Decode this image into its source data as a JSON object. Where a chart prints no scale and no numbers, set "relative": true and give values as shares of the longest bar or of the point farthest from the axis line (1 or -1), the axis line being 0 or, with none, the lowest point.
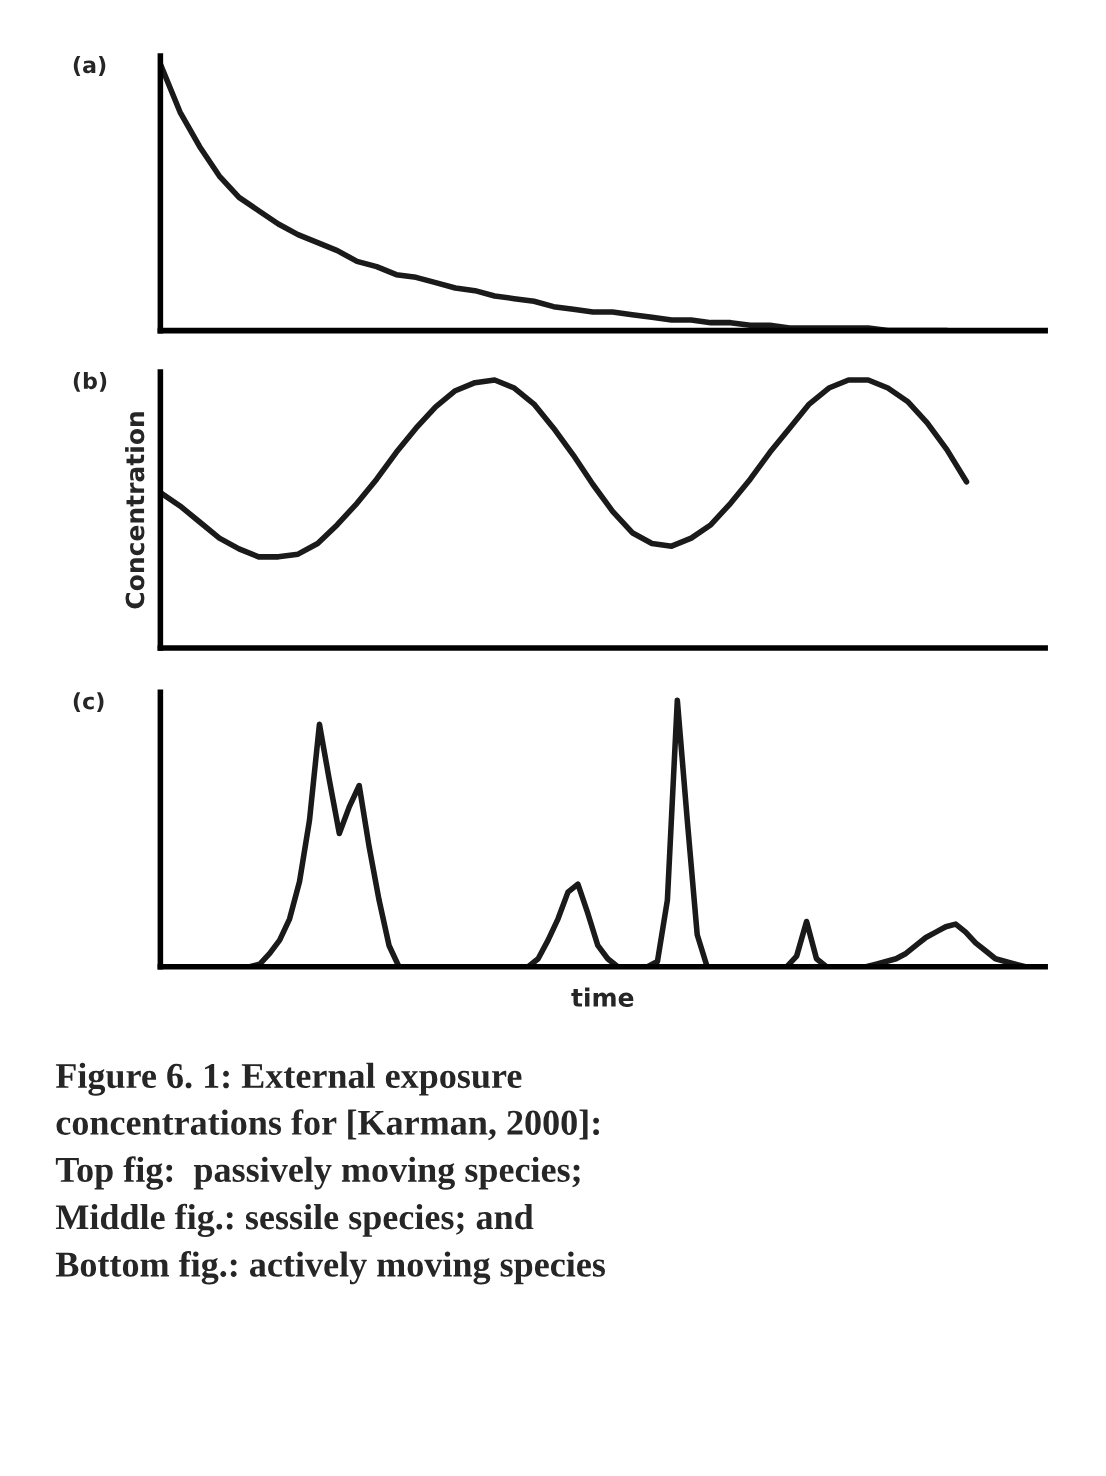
{
  "chart_data": [
    {
      "type": "line",
      "relative": true,
      "annotations": [
        "(a)"
      ],
      "categories": [
        null,
        null,
        null,
        null,
        null,
        null,
        null,
        null,
        null,
        null,
        null,
        null,
        null,
        null,
        null,
        null,
        null,
        null,
        null,
        null,
        null,
        null,
        null,
        null,
        null,
        null,
        null,
        null,
        null,
        null,
        null,
        null,
        null,
        null,
        null,
        null,
        null,
        null,
        null,
        null,
        null,
        null,
        null,
        null,
        null,
        null
      ],
      "series": [
        {
          "color": "#1a1a1a",
          "values": [
            1.0,
            0.82,
            0.69,
            0.58,
            0.5,
            0.45,
            0.4,
            0.36,
            0.33,
            0.3,
            0.26,
            0.24,
            0.21,
            0.2,
            0.18,
            0.16,
            0.15,
            0.13,
            0.12,
            0.11,
            0.09,
            0.08,
            0.07,
            0.07,
            0.06,
            0.05,
            0.04,
            0.04,
            0.03,
            0.03,
            0.02,
            0.02,
            0.01,
            0.01,
            0.01,
            0.01,
            0.01,
            0,
            0,
            0,
            0,
            null,
            null,
            null,
            null,
            null
          ]
        }
      ]
    },
    {
      "type": "line",
      "relative": true,
      "annotations": [
        "(b)"
      ],
      "ylabel": "Concentration",
      "categories": [
        null,
        null,
        null,
        null,
        null,
        null,
        null,
        null,
        null,
        null,
        null,
        null,
        null,
        null,
        null,
        null,
        null,
        null,
        null,
        null,
        null,
        null,
        null,
        null,
        null,
        null,
        null,
        null,
        null,
        null,
        null,
        null,
        null,
        null,
        null,
        null,
        null,
        null,
        null,
        null,
        null,
        null,
        null,
        null,
        null,
        null
      ],
      "series": [
        {
          "color": "#1a1a1a",
          "values": [
            0.58,
            0.53,
            0.47,
            0.41,
            0.37,
            0.34,
            0.34,
            0.35,
            0.39,
            0.46,
            0.54,
            0.63,
            0.73,
            0.82,
            0.9,
            0.96,
            0.99,
            1.0,
            0.97,
            0.91,
            0.82,
            0.72,
            0.61,
            0.51,
            0.43,
            0.39,
            0.38,
            0.41,
            0.46,
            0.54,
            0.63,
            0.73,
            0.82,
            0.91,
            0.97,
            1.0,
            1.0,
            0.97,
            0.92,
            0.84,
            0.74,
            0.62,
            null,
            null,
            null,
            null
          ]
        }
      ]
    },
    {
      "type": "line",
      "relative": true,
      "xlabel": "time",
      "annotations": [
        "(c)",
        "Figure 6. 1: External exposure\nconcentrations for [Karman, 2000]:\nTop fig:  passively moving species;\nMiddle fig.: sessile species; and\nBottom fig.: actively moving species"
      ],
      "categories": [
        null,
        null,
        null,
        null,
        null,
        null,
        null,
        null,
        null,
        null,
        null,
        null,
        null,
        null,
        null,
        null,
        null,
        null,
        null,
        null,
        null,
        null,
        null,
        null,
        null,
        null,
        null,
        null,
        null,
        null,
        null,
        null,
        null,
        null,
        null,
        null,
        null,
        null,
        null,
        null,
        null,
        null,
        null,
        null,
        null,
        null,
        null,
        null,
        null,
        null,
        null,
        null,
        null,
        null,
        null,
        null,
        null,
        null,
        null,
        null,
        null,
        null,
        null,
        null,
        null,
        null,
        null,
        null,
        null,
        null,
        null,
        null,
        null,
        null,
        null,
        null,
        null,
        null,
        null,
        null,
        null,
        null,
        null,
        null,
        null,
        null,
        null,
        null,
        null,
        null
      ],
      "series": [
        {
          "color": "#1a1a1a",
          "values": [
            0,
            0,
            0,
            0,
            0,
            0,
            0,
            0,
            0,
            0,
            0.01,
            0.05,
            0.1,
            0.18,
            0.32,
            0.55,
            0.91,
            0.7,
            0.5,
            0.6,
            0.68,
            0.45,
            0.25,
            0.08,
            0,
            0,
            0,
            0,
            0,
            0,
            0,
            0,
            0,
            0,
            0,
            0,
            0,
            0,
            0.03,
            0.1,
            0.18,
            0.28,
            0.31,
            0.2,
            0.08,
            0.03,
            0,
            0,
            0,
            0,
            0.02,
            0.25,
            1.0,
            0.55,
            0.12,
            0,
            0,
            0,
            0,
            0,
            0,
            0,
            0,
            0,
            0.04,
            0.17,
            0.03,
            0,
            0,
            0,
            0,
            0,
            0.01,
            0.02,
            0.03,
            0.05,
            0.08,
            0.11,
            0.13,
            0.15,
            0.16,
            0.13,
            0.09,
            0.06,
            0.03,
            0.02,
            0.01,
            0,
            0,
            0
          ]
        }
      ]
    }
  ]
}
